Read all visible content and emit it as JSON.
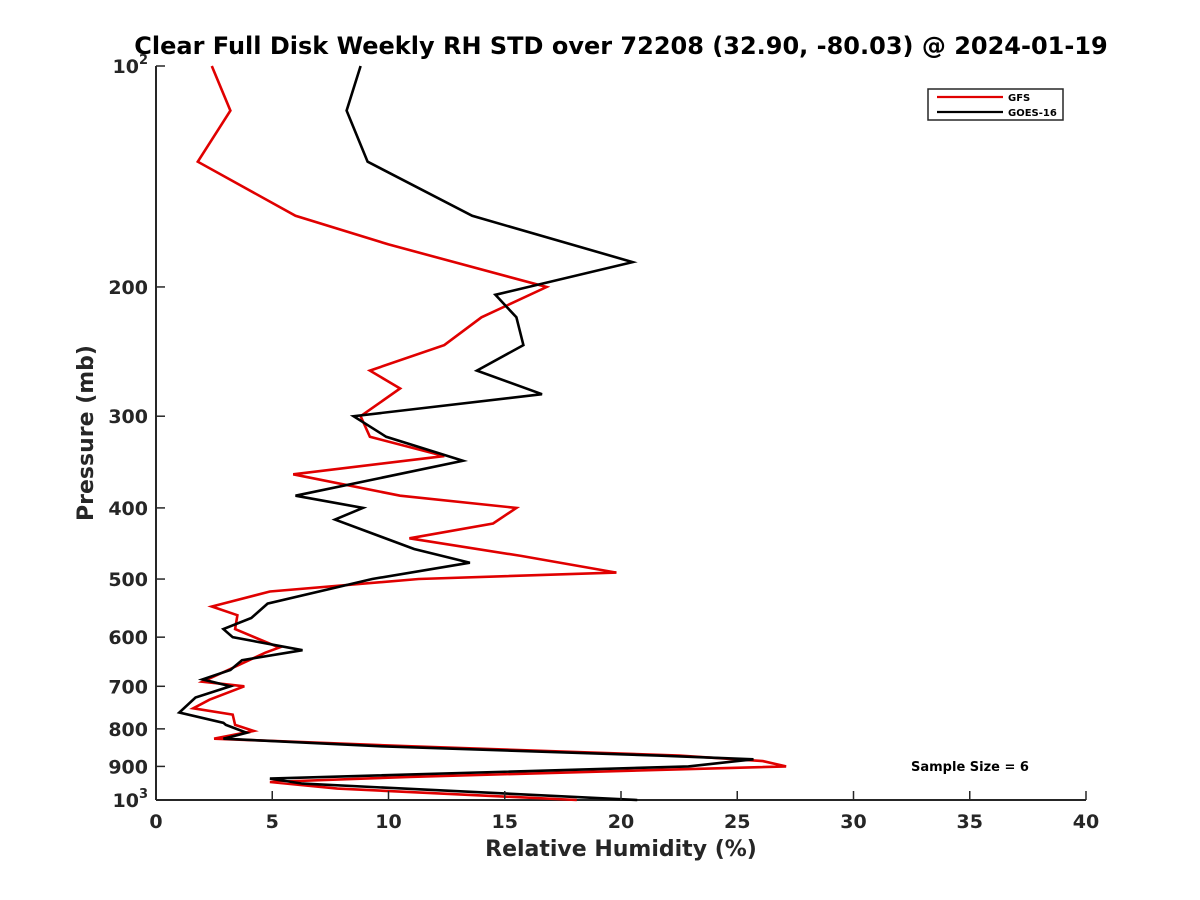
{
  "chart_data": {
    "type": "line",
    "title": "Clear Full Disk Weekly RH STD over 72208 (32.90, -80.03) @ 2024-01-19",
    "xlabel": "Relative Humidity (%)",
    "ylabel": "Pressure (mb)",
    "xlim": [
      0,
      40
    ],
    "ylim": [
      100,
      1000
    ],
    "yscale": "log",
    "y_reversed": true,
    "grid": false,
    "legend_position": "top-right",
    "x_ticks": [
      "0",
      "5",
      "10",
      "15",
      "20",
      "25",
      "30",
      "35",
      "40"
    ],
    "y_ticks": [
      {
        "value": 100,
        "base": "10",
        "exp": "2"
      },
      {
        "value": 200,
        "label": "200"
      },
      {
        "value": 300,
        "label": "300"
      },
      {
        "value": 400,
        "label": "400"
      },
      {
        "value": 500,
        "label": "500"
      },
      {
        "value": 600,
        "label": "600"
      },
      {
        "value": 700,
        "label": "700"
      },
      {
        "value": 800,
        "label": "800"
      },
      {
        "value": 900,
        "label": "900"
      },
      {
        "value": 1000,
        "base": "10",
        "exp": "3"
      }
    ],
    "annotation": "Sample Size = 6",
    "series": [
      {
        "name": "GFS",
        "color": "#e00000",
        "points": [
          [
            2.4,
            100
          ],
          [
            3.2,
            115
          ],
          [
            1.8,
            135
          ],
          [
            6.0,
            160
          ],
          [
            10.0,
            175
          ],
          [
            16.8,
            200
          ],
          [
            14.0,
            220
          ],
          [
            12.4,
            240
          ],
          [
            9.2,
            260
          ],
          [
            10.5,
            275
          ],
          [
            8.8,
            300
          ],
          [
            9.2,
            320
          ],
          [
            12.4,
            340
          ],
          [
            5.9,
            360
          ],
          [
            10.5,
            385
          ],
          [
            15.5,
            400
          ],
          [
            14.5,
            420
          ],
          [
            10.9,
            440
          ],
          [
            15.7,
            465
          ],
          [
            19.8,
            490
          ],
          [
            11.3,
            500
          ],
          [
            4.9,
            520
          ],
          [
            2.4,
            545
          ],
          [
            3.5,
            560
          ],
          [
            3.4,
            585
          ],
          [
            5.3,
            620
          ],
          [
            4.7,
            630
          ],
          [
            3.1,
            665
          ],
          [
            2.0,
            690
          ],
          [
            3.8,
            700
          ],
          [
            2.3,
            730
          ],
          [
            1.6,
            750
          ],
          [
            3.3,
            765
          ],
          [
            3.4,
            790
          ],
          [
            4.2,
            805
          ],
          [
            2.5,
            825
          ],
          [
            11.0,
            845
          ],
          [
            22.5,
            870
          ],
          [
            26.1,
            885
          ],
          [
            27.1,
            900
          ],
          [
            10.9,
            930
          ],
          [
            4.9,
            945
          ],
          [
            7.8,
            965
          ],
          [
            18.1,
            1000
          ]
        ]
      },
      {
        "name": "GOES-16",
        "color": "#000000",
        "points": [
          [
            8.8,
            100
          ],
          [
            8.2,
            115
          ],
          [
            9.1,
            135
          ],
          [
            13.6,
            160
          ],
          [
            20.5,
            185
          ],
          [
            14.6,
            205
          ],
          [
            15.5,
            220
          ],
          [
            15.8,
            240
          ],
          [
            13.8,
            260
          ],
          [
            16.6,
            280
          ],
          [
            8.5,
            300
          ],
          [
            9.9,
            320
          ],
          [
            13.2,
            345
          ],
          [
            6.0,
            385
          ],
          [
            8.9,
            400
          ],
          [
            7.7,
            415
          ],
          [
            11.1,
            455
          ],
          [
            13.5,
            475
          ],
          [
            9.3,
            500
          ],
          [
            4.8,
            540
          ],
          [
            4.1,
            565
          ],
          [
            2.9,
            585
          ],
          [
            3.3,
            600
          ],
          [
            6.3,
            625
          ],
          [
            3.7,
            645
          ],
          [
            3.2,
            665
          ],
          [
            2.0,
            685
          ],
          [
            3.2,
            700
          ],
          [
            1.7,
            725
          ],
          [
            1.0,
            760
          ],
          [
            2.9,
            785
          ],
          [
            3.0,
            790
          ],
          [
            3.9,
            810
          ],
          [
            2.9,
            825
          ],
          [
            9.7,
            845
          ],
          [
            21.6,
            870
          ],
          [
            25.7,
            880
          ],
          [
            22.9,
            900
          ],
          [
            4.9,
            935
          ],
          [
            6.3,
            950
          ],
          [
            20.7,
            1000
          ]
        ]
      }
    ]
  }
}
